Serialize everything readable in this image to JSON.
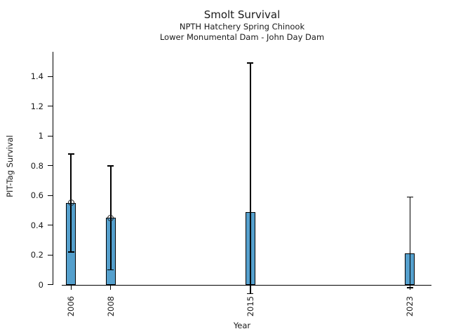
{
  "figure": {
    "title": "Smolt Survival",
    "subtitle1": "NPTH Hatchery Spring Chinook",
    "subtitle2": "Lower Monumental Dam - John Day Dam"
  },
  "chart_data": {
    "type": "bar",
    "title": "Smolt Survival",
    "subtitle": [
      "NPTH Hatchery Spring Chinook",
      "Lower Monumental Dam - John Day Dam"
    ],
    "xlabel": "Year",
    "ylabel": "PIT-Tag Survival",
    "categories": [
      "2006",
      "2008",
      "2015",
      "2023"
    ],
    "values": [
      0.55,
      0.45,
      0.49,
      0.21
    ],
    "error_low": [
      0.22,
      0.1,
      -0.06,
      -0.02
    ],
    "error_high": [
      0.88,
      0.8,
      1.49,
      0.59
    ],
    "point_markers": [
      true,
      true,
      false,
      false
    ],
    "x_axis_scale": "numeric-year",
    "ylim": [
      0,
      1.57
    ],
    "yticks": [
      0,
      0.2,
      0.4,
      0.6,
      0.8,
      1,
      1.2,
      1.4
    ],
    "ytick_labels": [
      "0",
      "0.2",
      "0.4",
      "0.6",
      "0.8",
      "1",
      "1.2",
      "1.4"
    ],
    "grid": false,
    "legend": null,
    "bar_color": "#55A0CD",
    "edge_color": "#000000",
    "text_color": "#1a1a1a"
  }
}
